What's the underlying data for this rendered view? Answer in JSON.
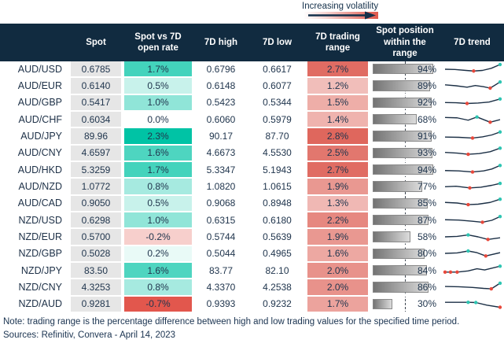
{
  "annotation": {
    "label": "Increasing volatility"
  },
  "header": {
    "pair": "",
    "spot": "Spot",
    "vs_open": "Spot vs 7D open rate",
    "high": "7D high",
    "low": "7D low",
    "range": "7D trading range",
    "position": "Spot position within the range",
    "trend": "7D trend"
  },
  "colors": {
    "header_bg": "#112B40",
    "cell_text": "#21364E",
    "spot_col_bg": "#E6E6E6",
    "positive_scale_max": "#00C3A5",
    "negative_scale_max": "#E2574D",
    "range_scale_max": "#DF675D",
    "bar_gradient_dark": "#747474",
    "bar_gradient_light": "#DCDCDC",
    "bar_border": "#8A8A8A",
    "sparkline_line": "#1B2F45",
    "sparkline_min_dot": "#E8483B",
    "sparkline_max_dot": "#2EC5B2",
    "volatility_gradient_red": "#E0584C",
    "arrow": "#14304A"
  },
  "scales": {
    "vs_open_max": 2.3,
    "vs_open_min": -0.7,
    "range_min": 0,
    "range_max": 2.8
  },
  "chart_data": {
    "type": "table",
    "title": "",
    "columns": [
      "Currency pair",
      "Spot",
      "Spot vs 7D open rate",
      "7D high",
      "7D low",
      "7D trading range",
      "Spot position within the range",
      "7D trend"
    ],
    "rows": [
      {
        "pair": "AUD/USD",
        "spot": "0.6785",
        "vs_open_pct": 1.7,
        "high": "0.6796",
        "low": "0.6617",
        "range_pct": 2.7,
        "position_pct": 94,
        "trend": {
          "points": [
            [
              0,
              0.5
            ],
            [
              0.18,
              0.52
            ],
            [
              0.38,
              0.6
            ],
            [
              0.52,
              0.65
            ],
            [
              0.68,
              0.6
            ],
            [
              0.84,
              0.42
            ],
            [
              1,
              0.1
            ]
          ],
          "min_idx": [
            3
          ],
          "max_idx": [
            6
          ]
        }
      },
      {
        "pair": "AUD/EUR",
        "spot": "0.6140",
        "vs_open_pct": 0.5,
        "high": "0.6148",
        "low": "0.6077",
        "range_pct": 1.2,
        "position_pct": 89,
        "trend": {
          "points": [
            [
              0,
              0.42
            ],
            [
              0.2,
              0.5
            ],
            [
              0.4,
              0.62
            ],
            [
              0.55,
              0.48
            ],
            [
              0.7,
              0.58
            ],
            [
              0.82,
              0.7
            ],
            [
              1,
              0.18
            ]
          ],
          "min_idx": [
            5
          ],
          "max_idx": [
            6
          ]
        }
      },
      {
        "pair": "AUD/GBP",
        "spot": "0.5417",
        "vs_open_pct": 1.0,
        "high": "0.5423",
        "low": "0.5344",
        "range_pct": 1.5,
        "position_pct": 92,
        "trend": {
          "points": [
            [
              0,
              0.52
            ],
            [
              0.2,
              0.54
            ],
            [
              0.4,
              0.6
            ],
            [
              0.6,
              0.56
            ],
            [
              0.8,
              0.48
            ],
            [
              1,
              0.22
            ]
          ],
          "min_idx": [
            2
          ],
          "max_idx": [
            5
          ]
        }
      },
      {
        "pair": "AUD/CHF",
        "spot": "0.6034",
        "vs_open_pct": 0.0,
        "high": "0.6060",
        "low": "0.5979",
        "range_pct": 1.4,
        "position_pct": 68,
        "trend": {
          "points": [
            [
              0,
              0.32
            ],
            [
              0.22,
              0.35
            ],
            [
              0.42,
              0.55
            ],
            [
              0.58,
              0.28
            ],
            [
              0.82,
              0.72
            ],
            [
              1,
              0.5
            ]
          ],
          "min_idx": [
            4
          ],
          "max_idx": [
            3
          ]
        }
      },
      {
        "pair": "AUD/JPY",
        "spot": "89.96",
        "vs_open_pct": 2.3,
        "high": "90.17",
        "low": "87.70",
        "range_pct": 2.8,
        "position_pct": 91,
        "trend": {
          "points": [
            [
              0,
              0.58
            ],
            [
              0.25,
              0.6
            ],
            [
              0.5,
              0.66
            ],
            [
              0.68,
              0.56
            ],
            [
              0.85,
              0.4
            ],
            [
              1,
              0.15
            ]
          ],
          "min_idx": [
            2
          ],
          "max_idx": [
            5
          ]
        }
      },
      {
        "pair": "AUD/CNY",
        "spot": "4.6597",
        "vs_open_pct": 1.6,
        "high": "4.6673",
        "low": "4.5530",
        "range_pct": 2.5,
        "position_pct": 93,
        "trend": {
          "points": [
            [
              0,
              0.48
            ],
            [
              0.22,
              0.54
            ],
            [
              0.42,
              0.64
            ],
            [
              0.62,
              0.58
            ],
            [
              0.82,
              0.42
            ],
            [
              1,
              0.12
            ]
          ],
          "min_idx": [
            2
          ],
          "max_idx": [
            5
          ]
        }
      },
      {
        "pair": "AUD/HKD",
        "spot": "5.3259",
        "vs_open_pct": 1.7,
        "high": "5.3347",
        "low": "5.1943",
        "range_pct": 2.7,
        "position_pct": 94,
        "trend": {
          "points": [
            [
              0,
              0.55
            ],
            [
              0.25,
              0.58
            ],
            [
              0.5,
              0.67
            ],
            [
              0.7,
              0.58
            ],
            [
              0.85,
              0.42
            ],
            [
              1,
              0.12
            ]
          ],
          "min_idx": [
            2
          ],
          "max_idx": [
            5
          ]
        }
      },
      {
        "pair": "AUD/NZD",
        "spot": "1.0772",
        "vs_open_pct": 0.8,
        "high": "1.0820",
        "low": "1.0615",
        "range_pct": 1.9,
        "position_pct": 77,
        "trend": {
          "points": [
            [
              0,
              0.52
            ],
            [
              0.2,
              0.48
            ],
            [
              0.45,
              0.62
            ],
            [
              0.65,
              0.56
            ],
            [
              0.85,
              0.4
            ],
            [
              1,
              0.24
            ]
          ],
          "min_idx": [
            2
          ],
          "max_idx": [
            5
          ]
        }
      },
      {
        "pair": "AUD/CAD",
        "spot": "0.9050",
        "vs_open_pct": 0.5,
        "high": "0.9068",
        "low": "0.8948",
        "range_pct": 1.3,
        "position_pct": 85,
        "trend": {
          "points": [
            [
              0,
              0.45
            ],
            [
              0.22,
              0.5
            ],
            [
              0.42,
              0.64
            ],
            [
              0.6,
              0.6
            ],
            [
              0.82,
              0.45
            ],
            [
              1,
              0.18
            ]
          ],
          "min_idx": [
            2
          ],
          "max_idx": [
            5
          ]
        }
      },
      {
        "pair": "NZD/USD",
        "spot": "0.6298",
        "vs_open_pct": 1.0,
        "high": "0.6315",
        "low": "0.6180",
        "range_pct": 2.2,
        "position_pct": 87,
        "trend": {
          "points": [
            [
              0,
              0.45
            ],
            [
              0.25,
              0.48
            ],
            [
              0.5,
              0.58
            ],
            [
              0.68,
              0.66
            ],
            [
              0.85,
              0.5
            ],
            [
              1,
              0.18
            ]
          ],
          "min_idx": [
            3
          ],
          "max_idx": [
            5
          ]
        }
      },
      {
        "pair": "NZD/EUR",
        "spot": "0.5700",
        "vs_open_pct": -0.2,
        "high": "0.5744",
        "low": "0.5639",
        "range_pct": 1.9,
        "position_pct": 58,
        "trend": {
          "points": [
            [
              0,
              0.5
            ],
            [
              0.22,
              0.46
            ],
            [
              0.42,
              0.34
            ],
            [
              0.6,
              0.5
            ],
            [
              0.78,
              0.72
            ],
            [
              1,
              0.58
            ]
          ],
          "min_idx": [
            4
          ],
          "max_idx": [
            2
          ]
        }
      },
      {
        "pair": "NZD/GBP",
        "spot": "0.5028",
        "vs_open_pct": 0.2,
        "high": "0.5044",
        "low": "0.4965",
        "range_pct": 1.6,
        "position_pct": 80,
        "trend": {
          "points": [
            [
              0,
              0.5
            ],
            [
              0.22,
              0.46
            ],
            [
              0.42,
              0.3
            ],
            [
              0.58,
              0.44
            ],
            [
              0.74,
              0.72
            ],
            [
              1,
              0.44
            ]
          ],
          "min_idx": [
            4
          ],
          "max_idx": [
            2
          ]
        }
      },
      {
        "pair": "NZD/JPY",
        "spot": "83.50",
        "vs_open_pct": 1.6,
        "high": "83.77",
        "low": "82.10",
        "range_pct": 2.0,
        "position_pct": 84,
        "trend": {
          "points": [
            [
              0,
              0.62
            ],
            [
              0.1,
              0.62
            ],
            [
              0.22,
              0.62
            ],
            [
              0.42,
              0.52
            ],
            [
              0.58,
              0.34
            ],
            [
              0.72,
              0.44
            ],
            [
              1,
              0.12
            ]
          ],
          "min_idx": [
            0,
            1,
            2
          ],
          "max_idx": [
            6
          ]
        }
      },
      {
        "pair": "NZD/CNY",
        "spot": "4.3253",
        "vs_open_pct": 0.8,
        "high": "4.3370",
        "low": "4.2538",
        "range_pct": 2.0,
        "position_pct": 86,
        "trend": {
          "points": [
            [
              0,
              0.44
            ],
            [
              0.25,
              0.46
            ],
            [
              0.5,
              0.52
            ],
            [
              0.7,
              0.6
            ],
            [
              0.84,
              0.64
            ],
            [
              1,
              0.16
            ]
          ],
          "min_idx": [
            4
          ],
          "max_idx": [
            5
          ]
        }
      },
      {
        "pair": "NZD/AUD",
        "spot": "0.9281",
        "vs_open_pct": -0.7,
        "high": "0.9393",
        "low": "0.9232",
        "range_pct": 1.7,
        "position_pct": 30,
        "trend": {
          "points": [
            [
              0,
              0.38
            ],
            [
              0.2,
              0.38
            ],
            [
              0.42,
              0.38
            ],
            [
              0.56,
              0.4
            ],
            [
              0.76,
              0.62
            ],
            [
              1,
              0.8
            ]
          ],
          "min_idx": [
            5
          ],
          "max_idx": [
            2,
            3
          ]
        }
      }
    ]
  },
  "note": "Note: trading range is the percentage difference between high and low trading values for the specified time period.",
  "sources": "Sources: Refinitiv, Convera - April 14, 2023"
}
